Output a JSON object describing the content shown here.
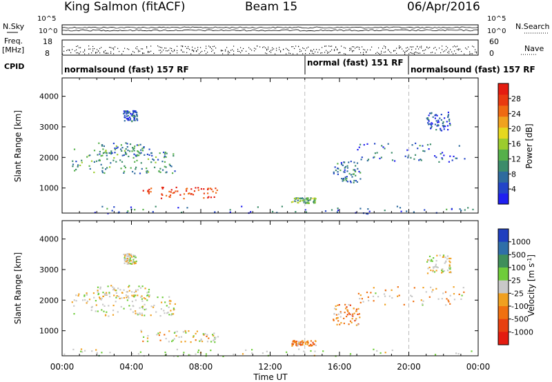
{
  "header": {
    "station": "King Salmon (fitACF)",
    "beam": "Beam 15",
    "date": "06/Apr/2016"
  },
  "side_labels": {
    "nsky": "N.Sky",
    "freq": "Freq.",
    "freq_unit": "[MHz]",
    "cpid": "CPID",
    "nsearch": "N.Search",
    "nave": "Nave"
  },
  "status_panels": {
    "noise_ticks_left": [
      "10^5",
      "10^0"
    ],
    "noise_ticks_right": [
      "10^5",
      "10^0"
    ],
    "freq_ticks": [
      "18",
      "8"
    ],
    "nave_ticks": [
      "60",
      "0"
    ],
    "cpid_segments": [
      {
        "label": "normalsound (fast) 157 RF",
        "start_h": 0,
        "end_h": 14
      },
      {
        "label": "normal (fast) 151 RF",
        "start_h": 14,
        "end_h": 20
      },
      {
        "label": "normalsound (fast) 157 RF",
        "start_h": 20,
        "end_h": 24
      }
    ]
  },
  "chart_data": [
    {
      "type": "heatmap",
      "title": "",
      "ylabel": "Slant Range [km]",
      "xlabel": "",
      "xlim": [
        0,
        24
      ],
      "ylim": [
        180,
        4600
      ],
      "yticks": [
        1000,
        2000,
        3000,
        4000
      ],
      "colorbar": {
        "label": "Power [dB]",
        "ticks": [
          "4",
          "8",
          "12",
          "16",
          "20",
          "24",
          "28"
        ],
        "colors": [
          "#1f1ff0",
          "#2345c8",
          "#2e6b9e",
          "#3c8c6a",
          "#55b04a",
          "#9ccc2e",
          "#e6d81e",
          "#f0a21e",
          "#ef6a12",
          "#e93a10",
          "#e41c10"
        ]
      },
      "regions": [
        {
          "x": [
            0.5,
            4.0
          ],
          "y": [
            1500,
            2300
          ],
          "level": 0.35
        },
        {
          "x": [
            2.0,
            5.0
          ],
          "y": [
            2050,
            2500
          ],
          "level": 0.3
        },
        {
          "x": [
            4.0,
            6.5
          ],
          "y": [
            1500,
            2200
          ],
          "level": 0.3
        },
        {
          "x": [
            3.5,
            4.3
          ],
          "y": [
            3200,
            3550
          ],
          "level": 0.15
        },
        {
          "x": [
            4.5,
            9.0
          ],
          "y": [
            650,
            1050
          ],
          "level": 0.9
        },
        {
          "x": [
            13.2,
            14.6
          ],
          "y": [
            520,
            700
          ],
          "level": 0.4
        },
        {
          "x": [
            15.6,
            17.2
          ],
          "y": [
            1200,
            1900
          ],
          "level": 0.25
        },
        {
          "x": [
            17.0,
            23.2
          ],
          "y": [
            1850,
            2500
          ],
          "level": 0.2
        },
        {
          "x": [
            21.0,
            22.4
          ],
          "y": [
            2900,
            3500
          ],
          "level": 0.15
        },
        {
          "x": [
            0.0,
            24.0
          ],
          "y": [
            180,
            420
          ],
          "level": 0.2
        }
      ]
    },
    {
      "type": "heatmap",
      "title": "",
      "ylabel": "Slant Range [km]",
      "xlabel": "Time UT",
      "xlim": [
        0,
        24
      ],
      "ylim": [
        180,
        4600
      ],
      "yticks": [
        1000,
        2000,
        3000,
        4000
      ],
      "xticks": [
        "00:00",
        "04:00",
        "08:00",
        "12:00",
        "16:00",
        "20:00",
        "00:00"
      ],
      "colorbar": {
        "label": "Velocity [m s^-1]",
        "ticks": [
          "1000",
          "500",
          "100",
          "25",
          "-25",
          "-100",
          "-500",
          "-1000"
        ],
        "colors": [
          "#1f3fbf",
          "#2f6fa8",
          "#3f8f5a",
          "#6fcc3a",
          "#c8c8c8",
          "#f0a020",
          "#f07010",
          "#e84010",
          "#e41c10"
        ]
      },
      "regions": [
        {
          "x": [
            0.5,
            4.0
          ],
          "y": [
            1500,
            2300
          ],
          "level": 0.5
        },
        {
          "x": [
            2.0,
            5.0
          ],
          "y": [
            2050,
            2500
          ],
          "level": 0.5
        },
        {
          "x": [
            4.0,
            6.5
          ],
          "y": [
            1500,
            2200
          ],
          "level": 0.5
        },
        {
          "x": [
            3.5,
            4.3
          ],
          "y": [
            3200,
            3550
          ],
          "level": 0.5
        },
        {
          "x": [
            4.5,
            9.0
          ],
          "y": [
            650,
            1050
          ],
          "level": 0.45
        },
        {
          "x": [
            13.2,
            14.6
          ],
          "y": [
            520,
            700
          ],
          "level": 0.3
        },
        {
          "x": [
            15.6,
            17.2
          ],
          "y": [
            1200,
            1900
          ],
          "level": 0.3
        },
        {
          "x": [
            17.0,
            23.2
          ],
          "y": [
            1850,
            2500
          ],
          "level": 0.4
        },
        {
          "x": [
            21.0,
            22.4
          ],
          "y": [
            2900,
            3500
          ],
          "level": 0.5
        },
        {
          "x": [
            0.0,
            24.0
          ],
          "y": [
            180,
            420
          ],
          "level": 0.55
        }
      ]
    }
  ]
}
